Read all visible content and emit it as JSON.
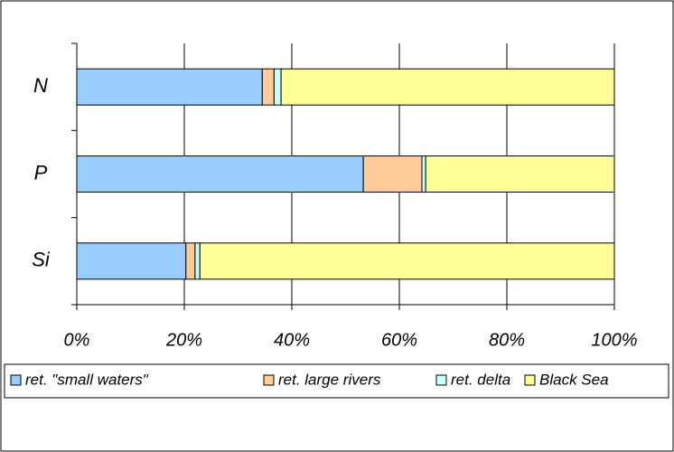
{
  "chart_data": {
    "type": "stacked-bar-horizontal",
    "categories": [
      "N",
      "P",
      "Si"
    ],
    "series": [
      {
        "name": "ret. \"small waters\"",
        "color": "#99ccff",
        "values": [
          34.5,
          53.3,
          20.3
        ]
      },
      {
        "name": "ret. large rivers",
        "color": "#ffcc99",
        "values": [
          2.2,
          10.9,
          1.7
        ]
      },
      {
        "name": "ret. delta",
        "color": "#ccffff",
        "values": [
          1.3,
          0.7,
          0.9
        ]
      },
      {
        "name": "Black Sea",
        "color": "#ffff99",
        "values": [
          62.0,
          35.1,
          77.1
        ]
      }
    ],
    "xlim": [
      0,
      100
    ],
    "xticks": [
      {
        "value": 0,
        "label": "0%"
      },
      {
        "value": 20,
        "label": "20%"
      },
      {
        "value": 40,
        "label": "40%"
      },
      {
        "value": 60,
        "label": "60%"
      },
      {
        "value": 80,
        "label": "80%"
      },
      {
        "value": 100,
        "label": "100%"
      }
    ],
    "grid": true
  }
}
